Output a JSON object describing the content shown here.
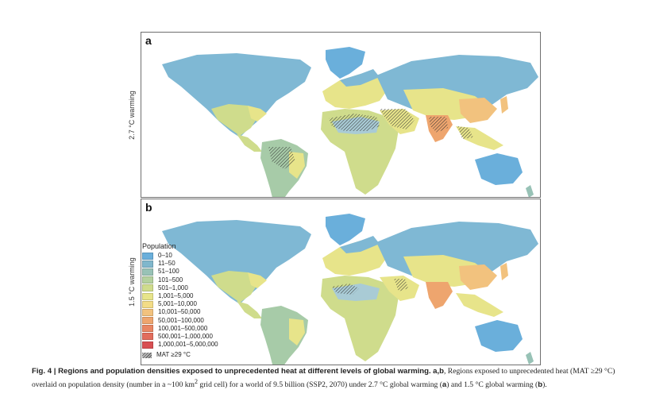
{
  "panels": [
    {
      "letter": "a",
      "side_label": "2.7 °C warming"
    },
    {
      "letter": "b",
      "side_label": "1.5 °C warming"
    }
  ],
  "legend": {
    "title": "Population",
    "items": [
      {
        "label": "0–10",
        "color": "#6aafdb"
      },
      {
        "label": "11–50",
        "color": "#80b7cc"
      },
      {
        "label": "51–100",
        "color": "#98c2b6"
      },
      {
        "label": "101–500",
        "color": "#b4d19e"
      },
      {
        "label": "501–1,000",
        "color": "#cfdc8c"
      },
      {
        "label": "1,001–5,000",
        "color": "#e7e48a"
      },
      {
        "label": "5,001–10,000",
        "color": "#f3dc86"
      },
      {
        "label": "10,001–50,000",
        "color": "#f2c27e"
      },
      {
        "label": "50,001–100,000",
        "color": "#eea56e"
      },
      {
        "label": "100,001–500,000",
        "color": "#e98663"
      },
      {
        "label": "500,001–1,000,000",
        "color": "#e26d5c"
      },
      {
        "label": "1,000,001–5,000,000",
        "color": "#d84f52"
      }
    ],
    "hatch_label": "MAT ≥29 °C"
  },
  "caption": {
    "fig": "Fig. 4 | Regions and population densities exposed to unprecedented heat at different levels of global warming.",
    "ab": "a",
    "comma": ",",
    "b": "b",
    "text1": ", Regions exposed to unprecedented heat (MAT ≥29 °C) overlaid on population density (number in a ~100 km",
    "sup": "2",
    "text2": " grid cell) for a world of 9.5 billion (SSP2, 2070) under 2.7 °C global warming (",
    "ref_a": "a",
    "text3": ") and 1.5 °C global warming (",
    "ref_b": "b",
    "text4": ")."
  }
}
